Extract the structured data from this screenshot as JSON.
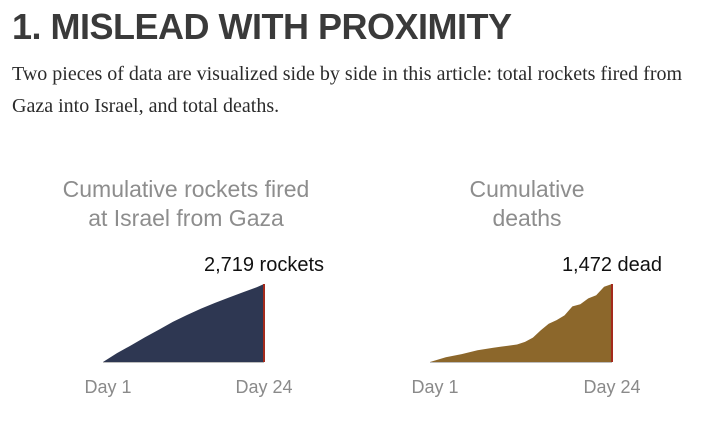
{
  "section": {
    "heading": "1. MISLEAD WITH PROXIMITY",
    "intro": "Two pieces of data are visualized side by side in this article: total rockets fired from Gaza into Israel, and total deaths."
  },
  "colors": {
    "rockets_fill": "#2e3752",
    "deaths_fill": "#8c672b",
    "end_line": "#a42a1c",
    "baseline": "#bdbdbd"
  },
  "chart_data": [
    {
      "type": "area",
      "title_lines": [
        "Cumulative rockets fired",
        "at Israel from Gaza"
      ],
      "end_label": "2,719 rockets",
      "x_tick_labels": [
        "Day 1",
        "Day 24"
      ],
      "x": [
        1,
        3,
        5,
        7,
        9,
        11,
        13,
        15,
        17,
        19,
        21,
        23,
        24
      ],
      "values": [
        0,
        310,
        580,
        860,
        1130,
        1400,
        1640,
        1860,
        2060,
        2250,
        2430,
        2610,
        2719
      ],
      "xlim": [
        1,
        24
      ],
      "ylim": [
        0,
        2719
      ],
      "grid": false,
      "legend": "none"
    },
    {
      "type": "area",
      "title_lines": [
        "Cumulative",
        "deaths"
      ],
      "end_label": "1,472 dead",
      "x_tick_labels": [
        "Day 1",
        "Day 24"
      ],
      "x": [
        1,
        3,
        5,
        7,
        9,
        10,
        12,
        13,
        14,
        15,
        16,
        17,
        18,
        19,
        20,
        21,
        22,
        23,
        24
      ],
      "values": [
        0,
        90,
        150,
        220,
        270,
        290,
        330,
        380,
        460,
        600,
        720,
        790,
        880,
        1050,
        1090,
        1200,
        1260,
        1420,
        1472
      ],
      "xlim": [
        1,
        24
      ],
      "ylim": [
        0,
        1472
      ],
      "grid": false,
      "legend": "none"
    }
  ]
}
